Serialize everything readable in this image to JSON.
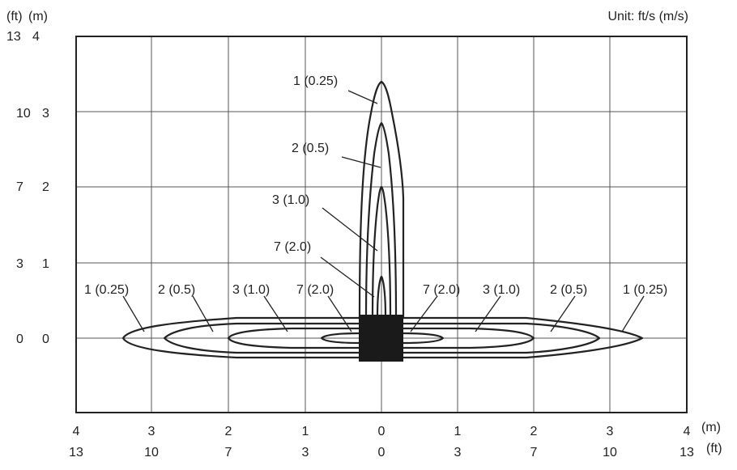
{
  "unit_label": "Unit: ft/s (m/s)",
  "left_axis": {
    "unit_ft": "(ft)",
    "unit_m": "(m)",
    "ticks": [
      {
        "ft": "13",
        "m": "4"
      },
      {
        "ft": "10",
        "m": "3"
      },
      {
        "ft": "7",
        "m": "2"
      },
      {
        "ft": "3",
        "m": "1"
      },
      {
        "ft": "0",
        "m": "0"
      }
    ]
  },
  "bottom_axis": {
    "unit_m": "(m)",
    "unit_ft": "(ft)",
    "ticks_m": [
      "4",
      "3",
      "2",
      "1",
      "0",
      "1",
      "2",
      "3",
      "4"
    ],
    "ticks_ft": [
      "13",
      "10",
      "7",
      "3",
      "0",
      "3",
      "7",
      "10",
      "13"
    ]
  },
  "vertical_labels": [
    "1 (0.25)",
    "2 (0.5)",
    "3 (1.0)",
    "7 (2.0)"
  ],
  "horizontal_labels_left": [
    "1 (0.25)",
    "2 (0.5)",
    "3 (1.0)",
    "7 (2.0)"
  ],
  "horizontal_labels_right": [
    "7 (2.0)",
    "3 (1.0)",
    "2 (0.5)",
    "1 (0.25)"
  ],
  "colors": {
    "ink": "#222222",
    "grid": "#555555",
    "unit": "#1a1a1a"
  }
}
